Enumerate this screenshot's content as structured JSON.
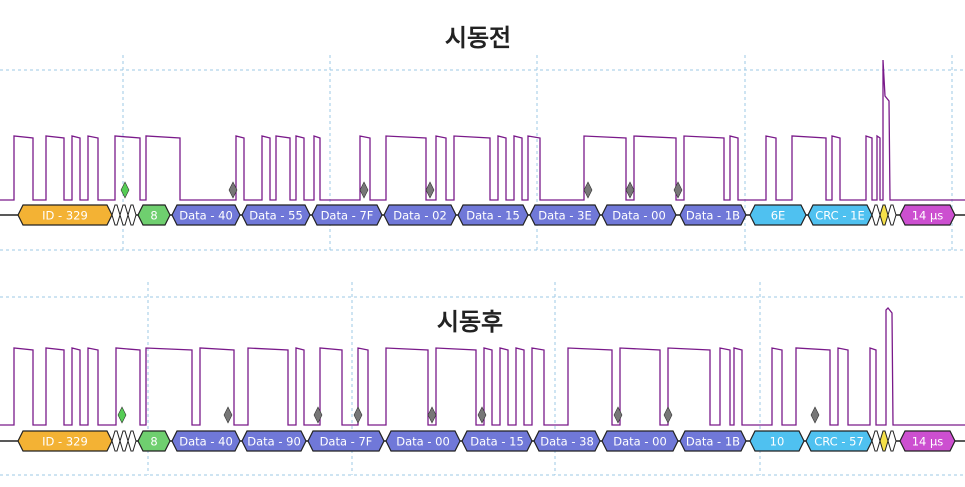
{
  "panels": [
    {
      "title": "시동전",
      "segments": [
        "ID - 329",
        "8",
        "Data - 40",
        "Data - 55",
        "Data - 7F",
        "Data - 02",
        "Data - 15",
        "Data - 3E",
        "Data - 00",
        "Data - 1B",
        "6E",
        "CRC - 1E",
        "14 µs"
      ]
    },
    {
      "title": "시동후",
      "segments": [
        "ID - 329",
        "8",
        "Data - 40",
        "Data - 90",
        "Data - 7F",
        "Data - 00",
        "Data - 15",
        "Data - 38",
        "Data - 00",
        "Data - 1B",
        "10",
        "CRC - 57",
        "14 µs"
      ]
    }
  ]
}
